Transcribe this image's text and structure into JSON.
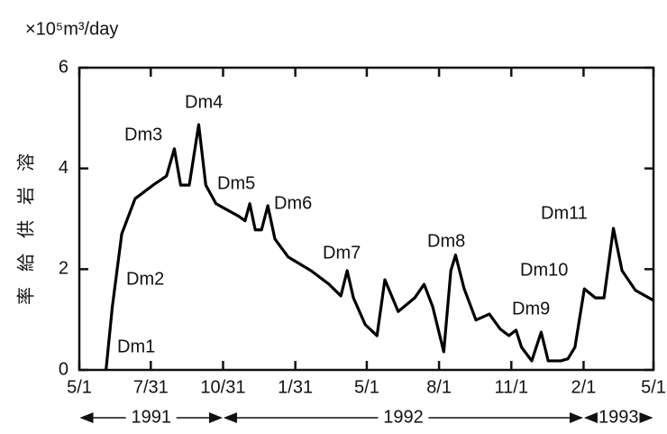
{
  "chart_data": {
    "type": "line",
    "unit_label": "×10⁵m³/day",
    "ylabel": "溶岩供給率",
    "x": [
      34,
      42,
      54,
      71,
      94,
      111,
      121,
      129,
      140,
      152,
      161,
      174,
      203,
      211,
      217,
      224,
      232,
      240,
      249,
      266,
      295,
      318,
      333,
      341,
      349,
      364,
      379,
      389,
      406,
      427,
      439,
      450,
      464,
      473,
      479,
      490,
      505,
      522,
      536,
      547,
      556,
      563,
      576,
      588,
      597,
      613,
      622,
      631,
      643,
      657,
      668,
      680,
      691,
      708,
      731
    ],
    "series": [
      {
        "name": "Dm",
        "color": "#000000",
        "values": [
          0,
          1.25,
          2.7,
          3.4,
          3.67,
          3.85,
          4.39,
          3.67,
          3.67,
          4.87,
          3.67,
          3.3,
          3.05,
          2.96,
          3.3,
          2.78,
          2.78,
          3.26,
          2.6,
          2.24,
          1.97,
          1.7,
          1.47,
          1.97,
          1.43,
          0.9,
          0.68,
          1.79,
          1.16,
          1.43,
          1.7,
          1.25,
          0.36,
          1.97,
          2.28,
          1.61,
          0.99,
          1.11,
          0.81,
          0.68,
          0.79,
          0.45,
          0.18,
          0.75,
          0.18,
          0.18,
          0.22,
          0.45,
          1.61,
          1.43,
          1.43,
          2.81,
          1.97,
          1.58,
          1.38
        ]
      }
    ],
    "xlim": [
      0,
      731
    ],
    "xticks": [
      {
        "value": 0,
        "label": "5/1"
      },
      {
        "value": 91,
        "label": "7/31"
      },
      {
        "value": 183,
        "label": "10/31"
      },
      {
        "value": 275,
        "label": "1/31"
      },
      {
        "value": 366,
        "label": "5/1"
      },
      {
        "value": 458,
        "label": "8/1"
      },
      {
        "value": 550,
        "label": "11/1"
      },
      {
        "value": 642,
        "label": "2/1"
      },
      {
        "value": 731,
        "label": "5/1"
      }
    ],
    "ylim": [
      0,
      6
    ],
    "yticks": [
      0,
      2,
      4,
      6
    ],
    "year_labels": [
      "1991",
      "1992",
      "1993"
    ],
    "annotations": [
      "Dm1",
      "Dm2",
      "Dm3",
      "Dm4",
      "Dm5",
      "Dm6",
      "Dm7",
      "Dm8",
      "Dm9",
      "Dm10",
      "Dm11"
    ]
  }
}
